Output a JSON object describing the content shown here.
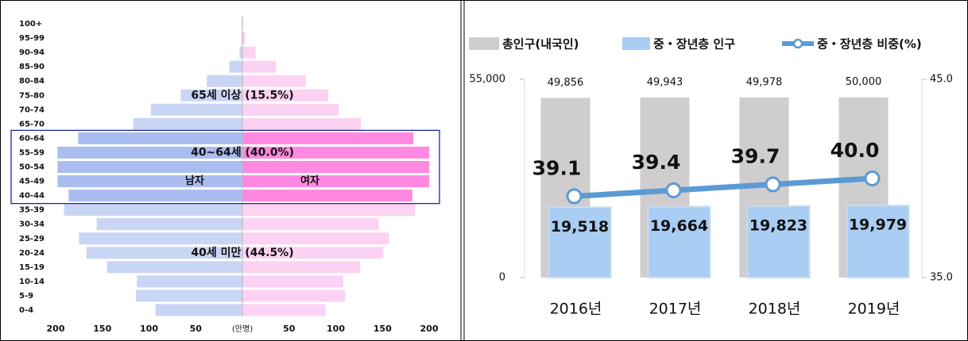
{
  "chart_data": [
    {
      "type": "pyramid",
      "categories": [
        "100+",
        "95-99",
        "90-94",
        "85-90",
        "80-84",
        "75-80",
        "70-74",
        "65-70",
        "60-64",
        "55-59",
        "50-54",
        "45-49",
        "40-44",
        "35-39",
        "30-34",
        "25-29",
        "20-24",
        "15-19",
        "10-14",
        "5-9",
        "0-4"
      ],
      "series": [
        {
          "name": "남자",
          "color": "#c9d5f5",
          "highlight_color": "#a9bdf0",
          "values": [
            -0.5,
            -1,
            -3,
            -14,
            -38,
            -66,
            -98,
            -117,
            -176,
            -198,
            -198,
            -198,
            -186,
            -191,
            -156,
            -175,
            -167,
            -145,
            -113,
            -114,
            -93
          ]
        },
        {
          "name": "여자",
          "color": "#fcd2f2",
          "highlight_color": "#ff88e0",
          "values": [
            1,
            3,
            14,
            36,
            68,
            92,
            103,
            127,
            183,
            200,
            200,
            200,
            182,
            185,
            146,
            157,
            151,
            126,
            108,
            110,
            89
          ]
        }
      ],
      "highlight_range": [
        "60-64",
        "40-44"
      ],
      "highlight_color": "#1a2aa0",
      "annotations": [
        "65세 이상 (15.5%)",
        "40~64세 (40.0%)",
        "40세 미만 (44.5%)"
      ],
      "xlim": [
        -200,
        200
      ],
      "xticks": [
        {
          "value": -200,
          "label": "200"
        },
        {
          "value": -150,
          "label": "150"
        },
        {
          "value": -100,
          "label": "100"
        },
        {
          "value": -50,
          "label": "50"
        },
        {
          "value": 0,
          "label": "(만명)"
        },
        50,
        100,
        150,
        200
      ],
      "grid": false
    },
    {
      "type": "bar_line",
      "categories": [
        "2016년",
        "2017년",
        "2018년",
        "2019년"
      ],
      "series": [
        {
          "name": "총인구(내국인)",
          "type": "bar",
          "color": "#cfcdcd",
          "values": [
            49856,
            49943,
            49978,
            50000
          ],
          "value_labels": [
            "49,856",
            "49,943",
            "49,978",
            "50,000"
          ]
        },
        {
          "name": "중・장년층 인구",
          "type": "bar",
          "color": "#a9cdf3",
          "values": [
            19518,
            19664,
            19823,
            19979
          ],
          "value_labels": [
            "19,518",
            "19,664",
            "19,823",
            "19,979"
          ]
        },
        {
          "name": "중・장년층 비중(%)",
          "type": "line",
          "axis": "y2",
          "color": "#5b9bd5",
          "values": [
            39.1,
            39.4,
            39.7,
            40.0
          ],
          "value_labels": [
            "39.1",
            "39.4",
            "39.7",
            "40.0"
          ]
        }
      ],
      "ylim": [
        0,
        55000
      ],
      "yticks": [
        0,
        {
          "value": 55000,
          "label": "55,000"
        }
      ],
      "y2lim": [
        35,
        45
      ],
      "y2ticks": [
        {
          "value": 35,
          "label": "35.0"
        },
        {
          "value": 45,
          "label": "45.0"
        }
      ],
      "legend": "top",
      "grid": false
    }
  ]
}
